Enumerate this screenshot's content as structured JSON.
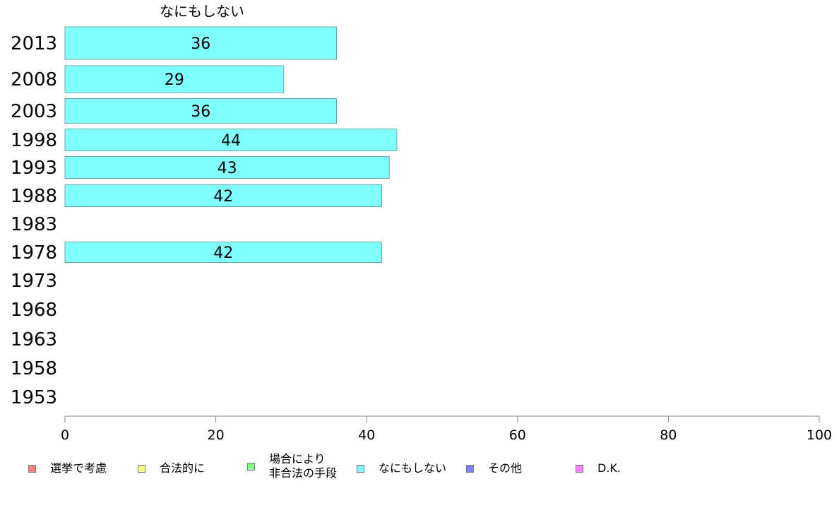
{
  "chart_data": {
    "type": "bar",
    "orientation": "horizontal",
    "title": "なにもしない",
    "categories": [
      "2013",
      "2008",
      "2003",
      "1998",
      "1993",
      "1988",
      "1983",
      "1978",
      "1973",
      "1968",
      "1963",
      "1958",
      "1953"
    ],
    "series": [
      {
        "name": "なにもしない",
        "color": "#80ffff",
        "values": [
          36,
          29,
          36,
          44,
          43,
          42,
          null,
          42,
          null,
          null,
          null,
          null,
          null
        ]
      }
    ],
    "xlim": [
      0,
      100
    ],
    "xticks": [
      "0",
      "20",
      "40",
      "60",
      "80",
      "100"
    ],
    "grid": false,
    "legend_position": "bottom"
  },
  "legend": [
    {
      "label": "選挙で考慮",
      "color": "#ff8080"
    },
    {
      "label": "合法的に",
      "color": "#ffff80"
    },
    {
      "label": "場合により\n非合法の手段",
      "color": "#80ff80"
    },
    {
      "label": "なにもしない",
      "color": "#80ffff"
    },
    {
      "label": "その他",
      "color": "#8080ff"
    },
    {
      "label": "D.K.",
      "color": "#ff80ff"
    }
  ]
}
